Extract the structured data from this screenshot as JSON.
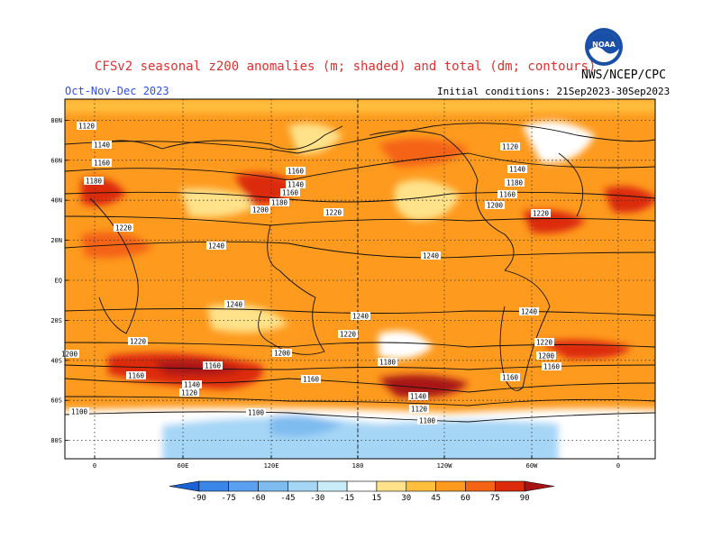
{
  "header": {
    "title": "CFSv2 seasonal z200 anomalies (m; shaded) and total (dm; contours)",
    "season": "Oct-Nov-Dec 2023",
    "initial_conditions": "Initial conditions: 21Sep2023-30Sep2023",
    "agency": "NWS/NCEP/CPC",
    "logo_text": "NOAA"
  },
  "map": {
    "lat_labels": [
      "80N",
      "60N",
      "40N",
      "20N",
      "EQ",
      "20S",
      "40S",
      "60S",
      "80S"
    ],
    "lon_labels": [
      "0",
      "60E",
      "120E",
      "180",
      "120W",
      "60W",
      "0"
    ],
    "contour_labels": [
      "1100",
      "1120",
      "1140",
      "1160",
      "1180",
      "1200",
      "1220",
      "1240"
    ]
  },
  "colorbar": {
    "tick_labels": [
      "-90",
      "-75",
      "-60",
      "-45",
      "-30",
      "-15",
      "15",
      "30",
      "45",
      "60",
      "75",
      "90"
    ],
    "colors": [
      "#1a62d8",
      "#3a86e8",
      "#5aa0f0",
      "#7ebcf0",
      "#a6d6f6",
      "#c8ecf8",
      "#ffffff",
      "#ffe28a",
      "#ffbe3c",
      "#fe9a1e",
      "#f46414",
      "#dc2a0c",
      "#a81212"
    ]
  }
}
